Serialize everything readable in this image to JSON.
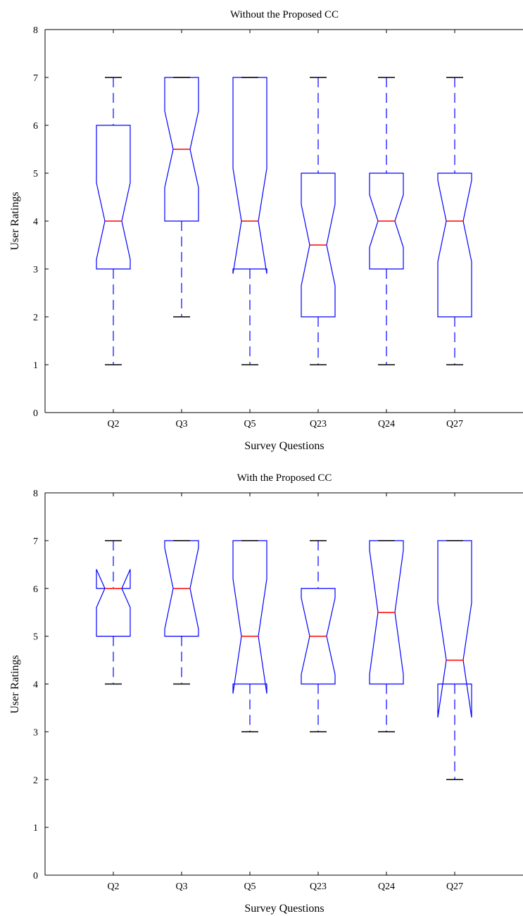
{
  "chart_data": [
    {
      "type": "box",
      "notched": true,
      "title": "Without the Proposed CC",
      "xlabel": "Survey Questions",
      "ylabel": "User Ratings",
      "ylim": [
        0,
        8
      ],
      "yticks": [
        "0",
        "1",
        "2",
        "3",
        "4",
        "5",
        "6",
        "7",
        "8"
      ],
      "categories": [
        "Q2",
        "Q3",
        "Q5",
        "Q23",
        "Q24",
        "Q27"
      ],
      "boxes": [
        {
          "min": 1,
          "q1": 3,
          "median": 4,
          "q3": 6,
          "max": 7,
          "notch_low": 3.2,
          "notch_high": 4.8
        },
        {
          "min": 2,
          "q1": 4,
          "median": 5.5,
          "q3": 7,
          "max": 7,
          "notch_low": 4.7,
          "notch_high": 6.3
        },
        {
          "min": 1,
          "q1": 3,
          "median": 4,
          "q3": 7,
          "max": 7,
          "notch_low": 2.9,
          "notch_high": 5.1
        },
        {
          "min": 1,
          "q1": 2,
          "median": 3.5,
          "q3": 5,
          "max": 7,
          "notch_low": 2.65,
          "notch_high": 4.35
        },
        {
          "min": 1,
          "q1": 3,
          "median": 4,
          "q3": 5,
          "max": 7,
          "notch_low": 3.45,
          "notch_high": 4.55
        },
        {
          "min": 1,
          "q1": 2,
          "median": 4,
          "q3": 5,
          "max": 7,
          "notch_low": 3.15,
          "notch_high": 4.85
        }
      ],
      "grid": false,
      "colors": {
        "box": "#0000ff",
        "median": "#ff0000",
        "whisker_cap": "#000000",
        "axis": "#000000"
      }
    },
    {
      "type": "box",
      "notched": true,
      "title": "With the Proposed CC",
      "xlabel": "Survey Questions",
      "ylabel": "User Ratings",
      "ylim": [
        0,
        8
      ],
      "yticks": [
        "0",
        "1",
        "2",
        "3",
        "4",
        "5",
        "6",
        "7",
        "8"
      ],
      "categories": [
        "Q2",
        "Q3",
        "Q5",
        "Q23",
        "Q24",
        "Q27"
      ],
      "boxes": [
        {
          "min": 4,
          "q1": 5,
          "median": 6,
          "q3": 6,
          "max": 7,
          "notch_low": 5.6,
          "notch_high": 6.4
        },
        {
          "min": 4,
          "q1": 5,
          "median": 6,
          "q3": 7,
          "max": 7,
          "notch_low": 5.15,
          "notch_high": 6.85
        },
        {
          "min": 3,
          "q1": 4,
          "median": 5,
          "q3": 7,
          "max": 7,
          "notch_low": 3.8,
          "notch_high": 6.2
        },
        {
          "min": 3,
          "q1": 4,
          "median": 5,
          "q3": 6,
          "max": 7,
          "notch_low": 4.2,
          "notch_high": 5.8
        },
        {
          "min": 3,
          "q1": 4,
          "median": 5.5,
          "q3": 7,
          "max": 7,
          "notch_low": 4.2,
          "notch_high": 6.8
        },
        {
          "min": 2,
          "q1": 4,
          "median": 4.5,
          "q3": 7,
          "max": 7,
          "notch_low": 3.3,
          "notch_high": 5.7
        }
      ],
      "grid": false,
      "colors": {
        "box": "#0000ff",
        "median": "#ff0000",
        "whisker_cap": "#000000",
        "axis": "#000000"
      }
    }
  ]
}
